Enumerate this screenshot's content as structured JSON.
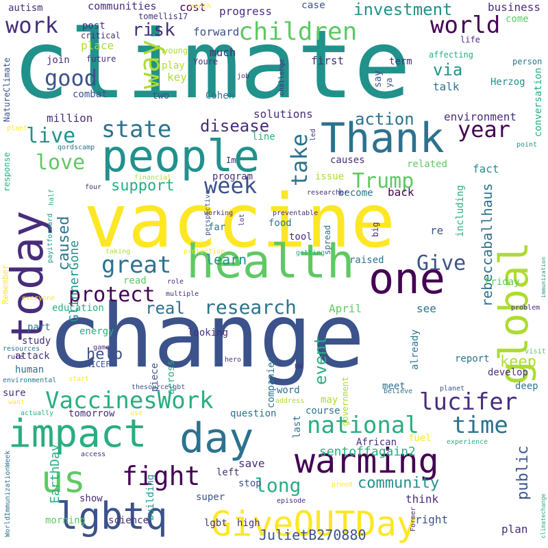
{
  "palette": [
    "#440154",
    "#472d7b",
    "#3b528b",
    "#2c728e",
    "#21918c",
    "#28ae80",
    "#5ec962",
    "#addc30",
    "#fde725"
  ],
  "words": [
    {
      "text": "climate",
      "color": "#21918c"
    },
    {
      "text": "change",
      "color": "#3b528b"
    },
    {
      "text": "vaccine",
      "color": "#fde725"
    },
    {
      "text": "people",
      "color": "#21918c"
    },
    {
      "text": "today",
      "color": "#472d7b"
    },
    {
      "text": "health",
      "color": "#5ec962"
    },
    {
      "text": "Thank",
      "color": "#2c728e"
    },
    {
      "text": "one",
      "color": "#440154"
    },
    {
      "text": "global",
      "color": "#addc30"
    },
    {
      "text": "impact",
      "color": "#28ae80"
    },
    {
      "text": "day",
      "color": "#2c728e"
    },
    {
      "text": "warming",
      "color": "#440154"
    },
    {
      "text": "GiveOUTDay",
      "color": "#fde725"
    },
    {
      "text": "lgbtq",
      "color": "#3b528b"
    },
    {
      "text": "us",
      "color": "#5ec962"
    },
    {
      "text": "children",
      "color": "#5ec962"
    },
    {
      "text": "world",
      "color": "#440154"
    },
    {
      "text": "way",
      "color": "#addc30"
    },
    {
      "text": "work",
      "color": "#472d7b"
    },
    {
      "text": "good",
      "color": "#3b528b"
    },
    {
      "text": "state",
      "color": "#2c728e"
    },
    {
      "text": "live",
      "color": "#21918c"
    },
    {
      "text": "great",
      "color": "#2c728e"
    },
    {
      "text": "year",
      "color": "#440154"
    },
    {
      "text": "Trump",
      "color": "#5ec962"
    },
    {
      "text": "take",
      "color": "#2c728e"
    },
    {
      "text": "week",
      "color": "#3b528b"
    },
    {
      "text": "love",
      "color": "#5ec962"
    },
    {
      "text": "fight",
      "color": "#440154"
    },
    {
      "text": "VaccinesWork",
      "color": "#28ae80"
    },
    {
      "text": "national",
      "color": "#28ae80"
    },
    {
      "text": "time",
      "color": "#2c728e"
    },
    {
      "text": "lucifer",
      "color": "#472d7b"
    },
    {
      "text": "Give",
      "color": "#3b528b"
    },
    {
      "text": "protect",
      "color": "#440154"
    },
    {
      "text": "research",
      "color": "#2c728e"
    },
    {
      "text": "investment",
      "color": "#21918c"
    },
    {
      "text": "risk",
      "color": "#472d7b"
    },
    {
      "text": "disease",
      "color": "#472d7b"
    },
    {
      "text": "action",
      "color": "#2c728e"
    },
    {
      "text": "support",
      "color": "#28ae80"
    },
    {
      "text": "long",
      "color": "#28ae80"
    },
    {
      "text": "community",
      "color": "#21918c"
    },
    {
      "text": "real",
      "color": "#2c728e"
    },
    {
      "text": "help",
      "color": "#3b528b"
    },
    {
      "text": "event",
      "color": "#28ae80"
    },
    {
      "text": "keep",
      "color": "#addc30"
    },
    {
      "text": "public",
      "color": "#3b528b"
    },
    {
      "text": "immunization",
      "color": "#21918c"
    },
    {
      "text": "rebeccaballhaus",
      "color": "#2c728e"
    },
    {
      "text": "JulietB270880",
      "color": "#3b528b"
    },
    {
      "text": "sentoffagain2",
      "color": "#28ae80"
    },
    {
      "text": "EarthDay",
      "color": "#28ae80"
    },
    {
      "text": "caused",
      "color": "#2c728e"
    },
    {
      "text": "GlinnerGone",
      "color": "#21918c"
    },
    {
      "text": "via",
      "color": "#21918c"
    },
    {
      "text": "learn",
      "color": "#21918c"
    },
    {
      "text": "environment",
      "color": "#472d7b"
    },
    {
      "text": "solutions",
      "color": "#472d7b"
    },
    {
      "text": "million",
      "color": "#472d7b"
    },
    {
      "text": "communities",
      "color": "#472d7b"
    },
    {
      "text": "cost",
      "color": "#440154"
    },
    {
      "text": "progress",
      "color": "#472d7b"
    },
    {
      "text": "case",
      "color": "#3b528b"
    },
    {
      "text": "business",
      "color": "#472d7b"
    },
    {
      "text": "autism",
      "color": "#472d7b"
    },
    {
      "text": "tomellis17",
      "color": "#472d7b"
    },
    {
      "text": "month",
      "color": "#fde725"
    },
    {
      "text": "come",
      "color": "#5ec962"
    },
    {
      "text": "post",
      "color": "#472d7b"
    },
    {
      "text": "critical",
      "color": "#472d7b"
    },
    {
      "text": "place",
      "color": "#addc30"
    },
    {
      "text": "forward",
      "color": "#3b528b"
    },
    {
      "text": "much",
      "color": "#472d7b"
    },
    {
      "text": "join",
      "color": "#472d7b"
    },
    {
      "text": "future",
      "color": "#472d7b"
    },
    {
      "text": "young",
      "color": "#addc30"
    },
    {
      "text": "Youre",
      "color": "#472d7b"
    },
    {
      "text": "play",
      "color": "#addc30"
    },
    {
      "text": "key",
      "color": "#addc30"
    },
    {
      "text": "first",
      "color": "#472d7b"
    },
    {
      "text": "term",
      "color": "#472d7b"
    },
    {
      "text": "affecting",
      "color": "#28ae80"
    },
    {
      "text": "life",
      "color": "#472d7b"
    },
    {
      "text": "person",
      "color": "#2c728e"
    },
    {
      "text": "say",
      "color": "#3b528b"
    },
    {
      "text": "ya",
      "color": "#3b528b"
    },
    {
      "text": "talk",
      "color": "#2c728e"
    },
    {
      "text": "Herzog",
      "color": "#21918c"
    },
    {
      "text": "combat",
      "color": "#3b528b"
    },
    {
      "text": "two",
      "color": "#3b528b"
    },
    {
      "text": "Cohen",
      "color": "#2c728e"
    },
    {
      "text": "job",
      "color": "#472d7b"
    },
    {
      "text": "challenge",
      "color": "#472d7b"
    },
    {
      "text": "conversation",
      "color": "#28ae80"
    },
    {
      "text": "NatureClimate",
      "color": "#3b528b"
    },
    {
      "text": "plant",
      "color": "#fde725"
    },
    {
      "text": "qordscamp",
      "color": "#2c728e"
    },
    {
      "text": "led",
      "color": "#472d7b"
    },
    {
      "text": "line",
      "color": "#28ae80"
    },
    {
      "text": "Im",
      "color": "#472d7b"
    },
    {
      "text": "causes",
      "color": "#472d7b"
    },
    {
      "text": "point",
      "color": "#21918c"
    },
    {
      "text": "response",
      "color": "#28ae80"
    },
    {
      "text": "financial",
      "color": "#addc30"
    },
    {
      "text": "program",
      "color": "#472d7b"
    },
    {
      "text": "issue",
      "color": "#addc30"
    },
    {
      "text": "related",
      "color": "#5ec962"
    },
    {
      "text": "fact",
      "color": "#21918c"
    },
    {
      "text": "four",
      "color": "#472d7b"
    },
    {
      "text": "become",
      "color": "#2c728e"
    },
    {
      "text": "researcher",
      "color": "#472d7b"
    },
    {
      "text": "back",
      "color": "#440154"
    },
    {
      "text": "half",
      "color": "#28ae80"
    },
    {
      "text": "perspective",
      "color": "#3b528b"
    },
    {
      "text": "working",
      "color": "#472d7b"
    },
    {
      "text": "far",
      "color": "#2c728e"
    },
    {
      "text": "food",
      "color": "#2c728e"
    },
    {
      "text": "lot",
      "color": "#472d7b"
    },
    {
      "text": "preventable",
      "color": "#472d7b"
    },
    {
      "text": "re",
      "color": "#3b528b"
    },
    {
      "text": "including",
      "color": "#28ae80"
    },
    {
      "text": "big",
      "color": "#472d7b"
    },
    {
      "text": "tool",
      "color": "#472d7b"
    },
    {
      "text": "payitforward",
      "color": "#21918c"
    },
    {
      "text": "taking",
      "color": "#addc30"
    },
    {
      "text": "protection",
      "color": "#fde725"
    },
    {
      "text": "getting",
      "color": "#28ae80"
    },
    {
      "text": "spread",
      "color": "#2c728e"
    },
    {
      "text": "raised",
      "color": "#2c728e"
    },
    {
      "text": "Remember",
      "color": "#fde725"
    },
    {
      "text": "read",
      "color": "#5ec962"
    },
    {
      "text": "role",
      "color": "#472d7b"
    },
    {
      "text": "Friday",
      "color": "#5ec962"
    },
    {
      "text": "everyone",
      "color": "#fde725"
    },
    {
      "text": "multiple",
      "color": "#472d7b"
    },
    {
      "text": "education",
      "color": "#28ae80"
    },
    {
      "text": "April",
      "color": "#5ec962"
    },
    {
      "text": "see",
      "color": "#2c728e"
    },
    {
      "text": "problem",
      "color": "#472d7b"
    },
    {
      "text": "part",
      "color": "#2c728e"
    },
    {
      "text": "energy",
      "color": "#28ae80"
    },
    {
      "text": "looking",
      "color": "#472d7b"
    },
    {
      "text": "study",
      "color": "#472d7b"
    },
    {
      "text": "rule",
      "color": "#472d7b"
    },
    {
      "text": "resources",
      "color": "#2c728e"
    },
    {
      "text": "game",
      "color": "#472d7b"
    },
    {
      "text": "visit",
      "color": "#5ec962"
    },
    {
      "text": "report",
      "color": "#2c728e"
    },
    {
      "text": "attack",
      "color": "#472d7b"
    },
    {
      "text": "human",
      "color": "#2c728e"
    },
    {
      "text": "UNICEF",
      "color": "#3b528b"
    },
    {
      "text": "piece",
      "color": "#3b528b"
    },
    {
      "text": "across",
      "color": "#28ae80"
    },
    {
      "text": "hero",
      "color": "#472d7b"
    },
    {
      "text": "UN",
      "color": "#472d7b"
    },
    {
      "text": "companies",
      "color": "#2c728e"
    },
    {
      "text": "government",
      "color": "#addc30"
    },
    {
      "text": "already",
      "color": "#2c728e"
    },
    {
      "text": "develop",
      "color": "#472d7b"
    },
    {
      "text": "environmental",
      "color": "#2c728e"
    },
    {
      "text": "start",
      "color": "#fde725"
    },
    {
      "text": "thesourcelgbt",
      "color": "#3b528b"
    },
    {
      "text": "planet",
      "color": "#3b528b"
    },
    {
      "text": "deep",
      "color": "#2c728e"
    },
    {
      "text": "meet",
      "color": "#2c728e"
    },
    {
      "text": "sure",
      "color": "#472d7b"
    },
    {
      "text": "want",
      "color": "#fde725"
    },
    {
      "text": "word",
      "color": "#2c728e"
    },
    {
      "text": "address",
      "color": "#addc30"
    },
    {
      "text": "believe",
      "color": "#2c728e"
    },
    {
      "text": "actually",
      "color": "#28ae80"
    },
    {
      "text": "tomorrow",
      "color": "#472d7b"
    },
    {
      "text": "use",
      "color": "#fde725"
    },
    {
      "text": "may",
      "color": "#addc30"
    },
    {
      "text": "question",
      "color": "#2c728e"
    },
    {
      "text": "course",
      "color": "#2c728e"
    },
    {
      "text": "last",
      "color": "#2c728e"
    },
    {
      "text": "fuel",
      "color": "#fde725"
    },
    {
      "text": "African",
      "color": "#472d7b"
    },
    {
      "text": "experience",
      "color": "#28ae80"
    },
    {
      "text": "WorldImmunizationWeek",
      "color": "#2c728e"
    },
    {
      "text": "access",
      "color": "#472d7b"
    },
    {
      "text": "climatechange",
      "color": "#28ae80"
    },
    {
      "text": "save",
      "color": "#472d7b"
    },
    {
      "text": "left",
      "color": "#472d7b"
    },
    {
      "text": "stop",
      "color": "#3b528b"
    },
    {
      "text": "proud",
      "color": "#fde725"
    },
    {
      "text": "think",
      "color": "#472d7b"
    },
    {
      "text": "show",
      "color": "#472d7b"
    },
    {
      "text": "super",
      "color": "#3b528b"
    },
    {
      "text": "building",
      "color": "#21918c"
    },
    {
      "text": "episode",
      "color": "#472d7b"
    },
    {
      "text": "Former",
      "color": "#472d7b"
    },
    {
      "text": "morning",
      "color": "#5ec962"
    },
    {
      "text": "science",
      "color": "#472d7b"
    },
    {
      "text": "lgbt",
      "color": "#472d7b"
    },
    {
      "text": "high",
      "color": "#472d7b"
    },
    {
      "text": "right",
      "color": "#3b528b"
    },
    {
      "text": "plan",
      "color": "#472d7b"
    }
  ]
}
